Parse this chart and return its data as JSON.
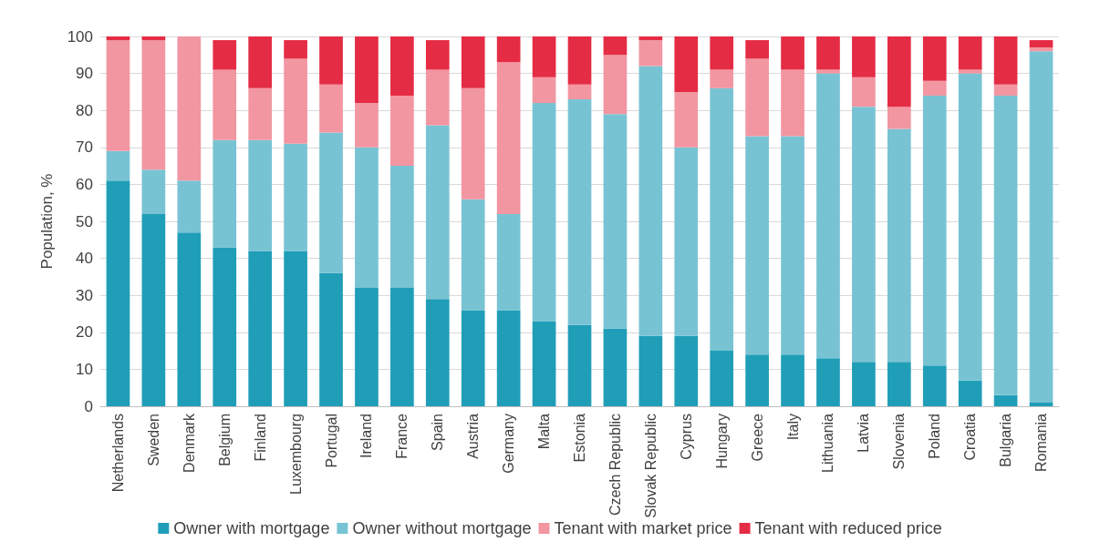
{
  "chart_data": {
    "type": "bar",
    "stacked": true,
    "ylabel": "Population, %",
    "categories": [
      "Netherlands",
      "Sweden",
      "Denmark",
      "Belgium",
      "Finland",
      "Luxembourg",
      "Portugal",
      "Ireland",
      "France",
      "Spain",
      "Austria",
      "Germany",
      "Malta",
      "Estonia",
      "Czech Republic",
      "Slovak Republic",
      "Cyprus",
      "Hungary",
      "Greece",
      "Italy",
      "Lithuania",
      "Latvia",
      "Slovenia",
      "Poland",
      "Croatia",
      "Bulgaria",
      "Romania"
    ],
    "series": [
      {
        "name": "Owner with mortgage",
        "color": "#209eb8",
        "values": [
          61,
          52,
          47,
          43,
          42,
          42,
          36,
          32,
          32,
          29,
          26,
          26,
          23,
          22,
          21,
          19,
          19,
          15,
          14,
          14,
          13,
          12,
          12,
          11,
          7,
          3,
          1
        ]
      },
      {
        "name": "Owner without mortgage",
        "color": "#78c3d3",
        "values": [
          8,
          12,
          14,
          29,
          30,
          29,
          38,
          38,
          33,
          47,
          30,
          26,
          59,
          61,
          58,
          73,
          51,
          71,
          59,
          59,
          77,
          69,
          63,
          73,
          83,
          81,
          95
        ]
      },
      {
        "name": "Tenant with market price",
        "color": "#f296a2",
        "values": [
          30,
          35,
          39,
          19,
          14,
          23,
          13,
          12,
          19,
          15,
          30,
          41,
          7,
          4,
          16,
          7,
          15,
          5,
          21,
          18,
          1,
          8,
          6,
          4,
          1,
          3,
          1
        ]
      },
      {
        "name": "Tenant with reduced price",
        "color": "#e52c45",
        "values": [
          1,
          1,
          0,
          8,
          14,
          5,
          13,
          18,
          16,
          8,
          14,
          7,
          11,
          13,
          5,
          1,
          15,
          9,
          5,
          9,
          9,
          11,
          19,
          12,
          9,
          13,
          2
        ]
      }
    ],
    "ylim": [
      0,
      100
    ],
    "yticks": [
      0,
      10,
      20,
      30,
      40,
      50,
      60,
      70,
      80,
      90,
      100
    ],
    "grid": "y",
    "legend": "bottom"
  }
}
